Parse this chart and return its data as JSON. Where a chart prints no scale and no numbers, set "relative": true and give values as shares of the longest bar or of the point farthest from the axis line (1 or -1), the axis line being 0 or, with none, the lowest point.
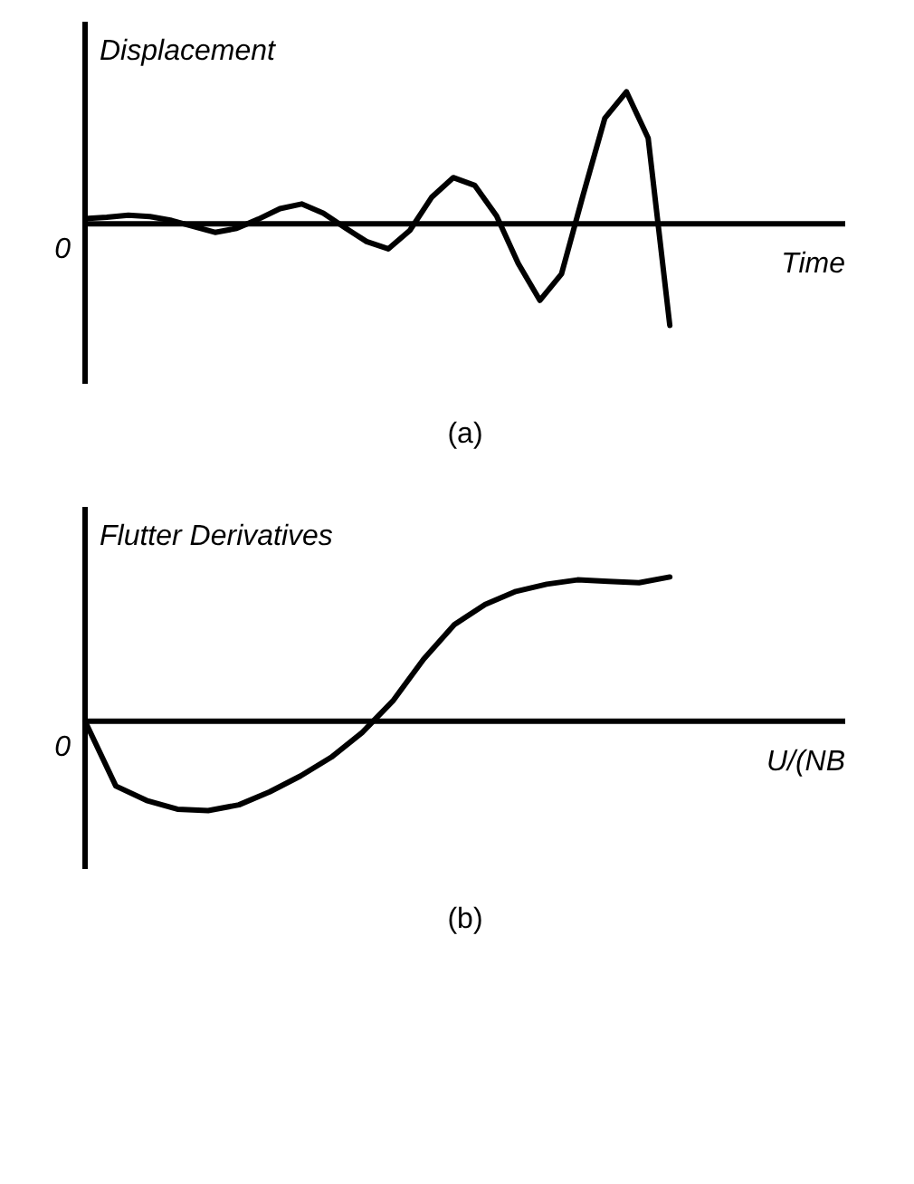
{
  "chart_data": [
    {
      "type": "line",
      "relative": true,
      "ylabel": "Displacement",
      "xlabel": "Time",
      "annotations": [
        "0",
        "(a)"
      ],
      "categories": [
        null,
        null,
        null,
        null,
        null,
        null,
        null,
        null,
        null,
        null,
        null,
        null,
        null,
        null,
        null,
        null,
        null,
        null,
        null,
        null,
        null,
        null,
        null,
        null,
        null,
        null,
        null,
        null
      ],
      "series": [
        {
          "color": "#000000",
          "values": [
            0.04,
            0.05,
            0.065,
            0.055,
            0.025,
            -0.02,
            -0.065,
            -0.035,
            0.035,
            0.115,
            0.15,
            0.08,
            -0.03,
            -0.135,
            -0.19,
            -0.05,
            0.2,
            0.35,
            0.29,
            0.06,
            -0.3,
            -0.58,
            -0.38,
            0.22,
            0.8,
            1,
            0.65,
            -0.77
          ]
        }
      ]
    },
    {
      "type": "line",
      "relative": true,
      "ylabel": "Flutter Derivatives",
      "xlabel": "U/(NB",
      "annotations": [
        "0",
        "(b)"
      ],
      "categories": [
        null,
        null,
        null,
        null,
        null,
        null,
        null,
        null,
        null,
        null,
        null,
        null,
        null,
        null,
        null,
        null,
        null,
        null,
        null,
        null
      ],
      "series": [
        {
          "color": "#000000",
          "values": [
            0,
            -0.45,
            -0.55,
            -0.61,
            -0.62,
            -0.58,
            -0.49,
            -0.38,
            -0.25,
            -0.08,
            0.14,
            0.43,
            0.67,
            0.81,
            0.9,
            0.95,
            0.98,
            0.97,
            0.96,
            1
          ]
        }
      ]
    }
  ]
}
